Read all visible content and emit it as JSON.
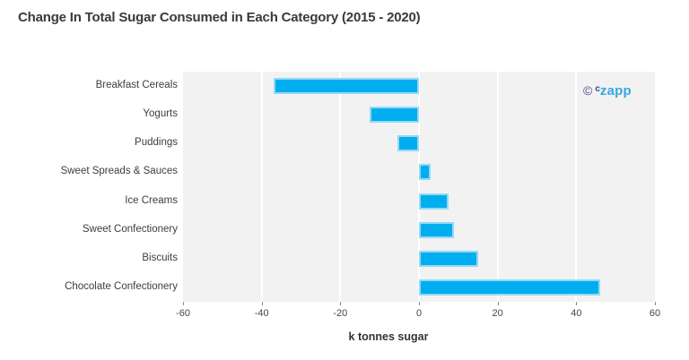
{
  "title": "Change In Total Sugar Consumed in Each Category (2015 - 2020)",
  "logo": {
    "copyright": "©",
    "prefix": "c",
    "name": "zapp"
  },
  "chart_data": {
    "type": "bar",
    "orientation": "horizontal",
    "title": "Change In Total Sugar Consumed in Each Category (2015 - 2020)",
    "categories": [
      "Breakfast Cereals",
      "Yogurts",
      "Puddings",
      "Sweet Spreads & Sauces",
      "Ice Creams",
      "Sweet Confectionery",
      "Biscuits",
      "Chocolate Confectionery"
    ],
    "values": [
      -37,
      -12.5,
      -5.5,
      3,
      7.5,
      9,
      15,
      46
    ],
    "xlabel": "k tonnes sugar",
    "ylabel": "",
    "xlim": [
      -60,
      60
    ],
    "xticks": [
      -60,
      -40,
      -20,
      0,
      20,
      40,
      60
    ],
    "grid": true,
    "legend": "none",
    "bar_color": "#00aeef",
    "bar_border_color": "#93d9f4",
    "plot_background": "#f2f2f2",
    "gridline_color": "#ffffff"
  }
}
